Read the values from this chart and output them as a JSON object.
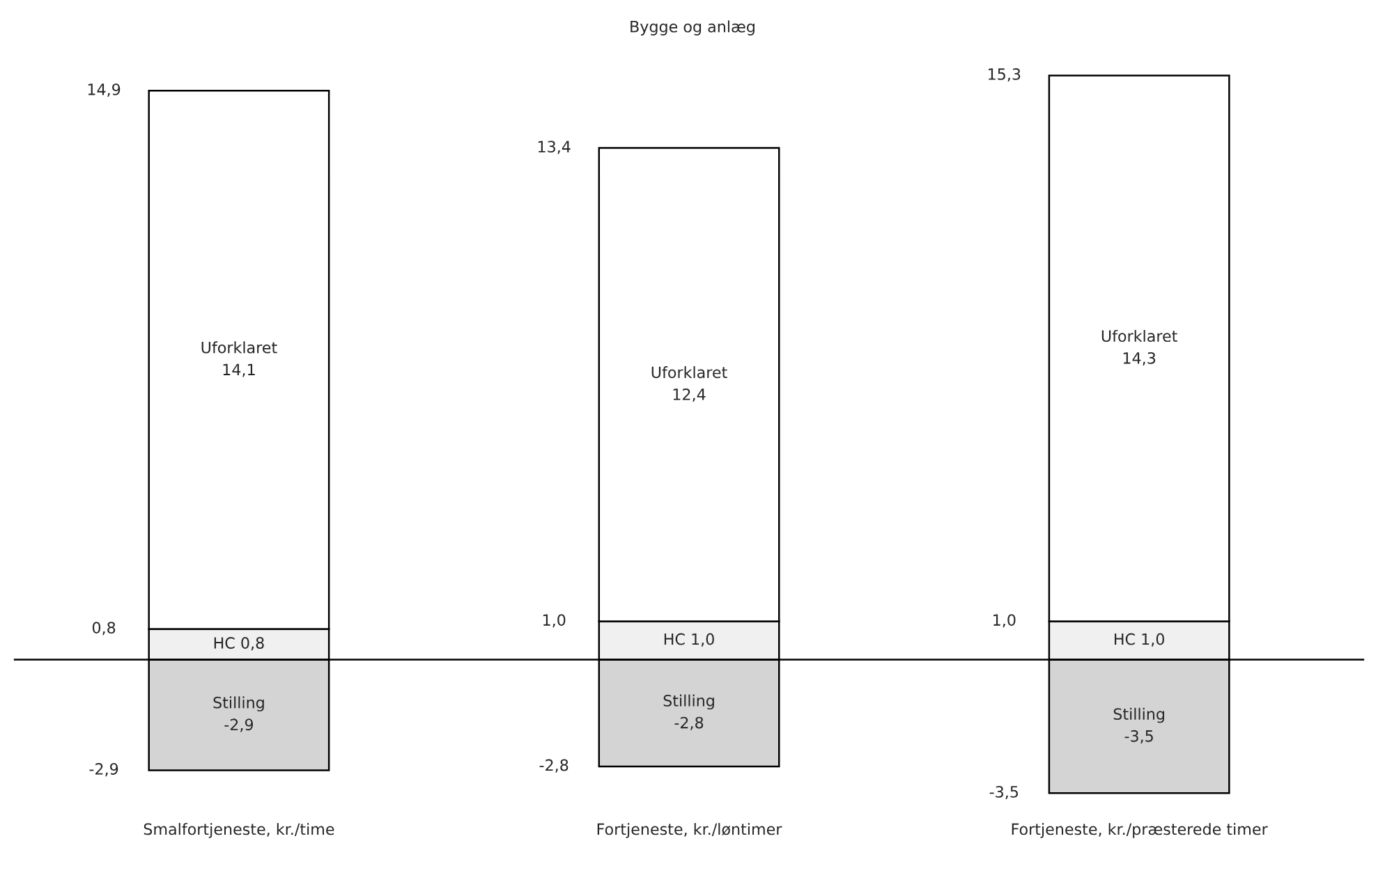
{
  "chart_data": {
    "type": "bar",
    "stacked": true,
    "title": "Bygge og anlæg",
    "categories": [
      "Smalfortjeneste, kr./time",
      "Fortjeneste, kr./løntimer",
      "Fortjeneste, kr./præsterede timer"
    ],
    "series": [
      {
        "color": "#d4d4d4",
        "values": [
          -2.9,
          -2.8,
          -3.5
        ],
        "value_labels": [
          "Stilling\n-2,9",
          "Stilling\n-2,8",
          "Stilling\n-3,5"
        ]
      },
      {
        "color": "#f0f0f0",
        "values": [
          0.8,
          1.0,
          1.0
        ],
        "value_labels": [
          "HC 0,8",
          "HC 1,0",
          "HC 1,0"
        ]
      },
      {
        "color": "#ffffff",
        "values": [
          14.1,
          12.4,
          14.3
        ],
        "value_labels": [
          "Uforklaret\n14,1",
          "Uforklaret\n12,4",
          "Uforklaret\n14,3"
        ]
      }
    ],
    "annotations": [
      "14,9",
      "13,4",
      "15,3",
      "0,8",
      "1,0",
      "1,0",
      "-2,9",
      "-2,8",
      "-3,5"
    ],
    "legend": false,
    "grid": false
  }
}
